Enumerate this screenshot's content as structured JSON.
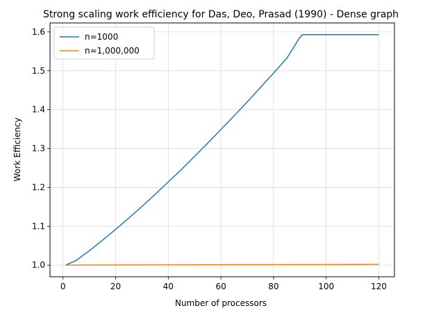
{
  "chart_data": {
    "type": "line",
    "title": "Strong scaling work efficiency for Das, Deo, Prasad  (1990) - Dense graph",
    "xlabel": "Number of processors",
    "ylabel": "Work Efficiency",
    "xlim": [
      -4.95,
      125.95
    ],
    "ylim": [
      0.97,
      1.623
    ],
    "xticks": [
      0,
      20,
      40,
      60,
      80,
      100,
      120
    ],
    "yticks": [
      1.0,
      1.1,
      1.2,
      1.3,
      1.4,
      1.5,
      1.6
    ],
    "grid": true,
    "legend_position": "top-left",
    "series": [
      {
        "name": "n=1000",
        "color": "#1f77b4",
        "x": [
          1,
          5,
          10,
          15,
          20,
          25,
          30,
          35,
          40,
          45,
          50,
          55,
          60,
          65,
          70,
          75,
          80,
          85,
          90,
          91,
          95,
          100,
          105,
          110,
          115,
          120
        ],
        "y": [
          1.0,
          1.012,
          1.037,
          1.064,
          1.092,
          1.121,
          1.151,
          1.182,
          1.214,
          1.246,
          1.28,
          1.314,
          1.349,
          1.384,
          1.42,
          1.457,
          1.494,
          1.532,
          1.586,
          1.593,
          1.593,
          1.593,
          1.593,
          1.593,
          1.593,
          1.593
        ]
      },
      {
        "name": "n=1,000,000",
        "color": "#ff7f0e",
        "x": [
          1,
          20,
          40,
          60,
          80,
          100,
          120
        ],
        "y": [
          1.0,
          1.0003,
          1.0006,
          1.001,
          1.0013,
          1.0016,
          1.002
        ]
      }
    ]
  }
}
